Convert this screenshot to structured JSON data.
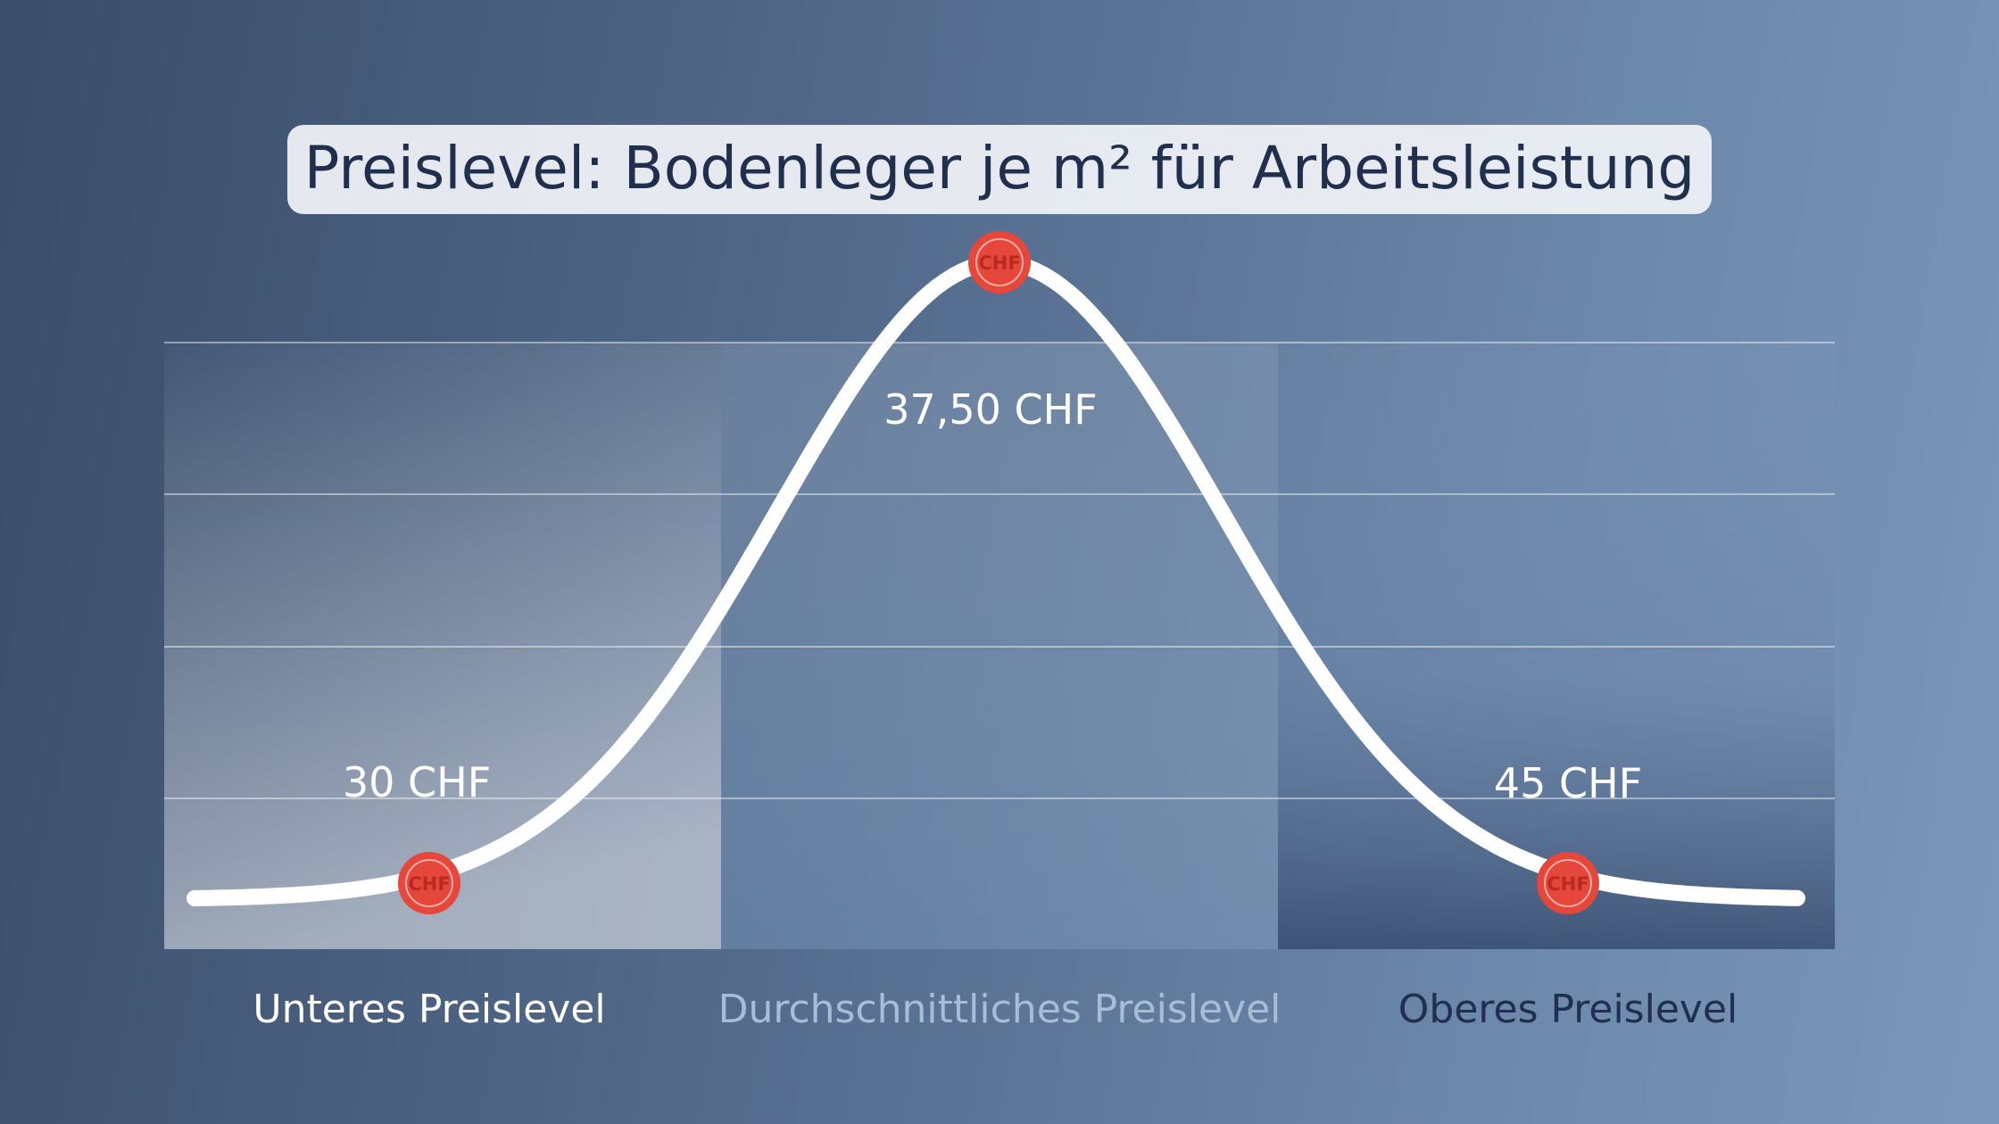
{
  "chart_data": {
    "type": "area",
    "title": "Preislevel: Bodenleger je m² für Arbeitsleistung",
    "categories": [
      "Unteres Preislevel",
      "Durchschnittliches Preislevel",
      "Oberes Preislevel"
    ],
    "points": [
      {
        "category": "Unteres Preislevel",
        "label": "30 CHF",
        "value": 30,
        "marker": "CHF"
      },
      {
        "category": "Durchschnittliches Preislevel",
        "label": "37,50 CHF",
        "value": 37.5,
        "marker": "CHF"
      },
      {
        "category": "Oberes Preislevel",
        "label": "45 CHF",
        "value": 45,
        "marker": "CHF"
      }
    ],
    "curve": "bell-shaped distribution, peak at the average price level",
    "grid": true,
    "colors": {
      "curve": "#ffffff",
      "marker": "#e5473b",
      "label_lower": "#ffffff",
      "label_average": "#a9bdd6",
      "label_upper": "#1f2f4d"
    }
  }
}
